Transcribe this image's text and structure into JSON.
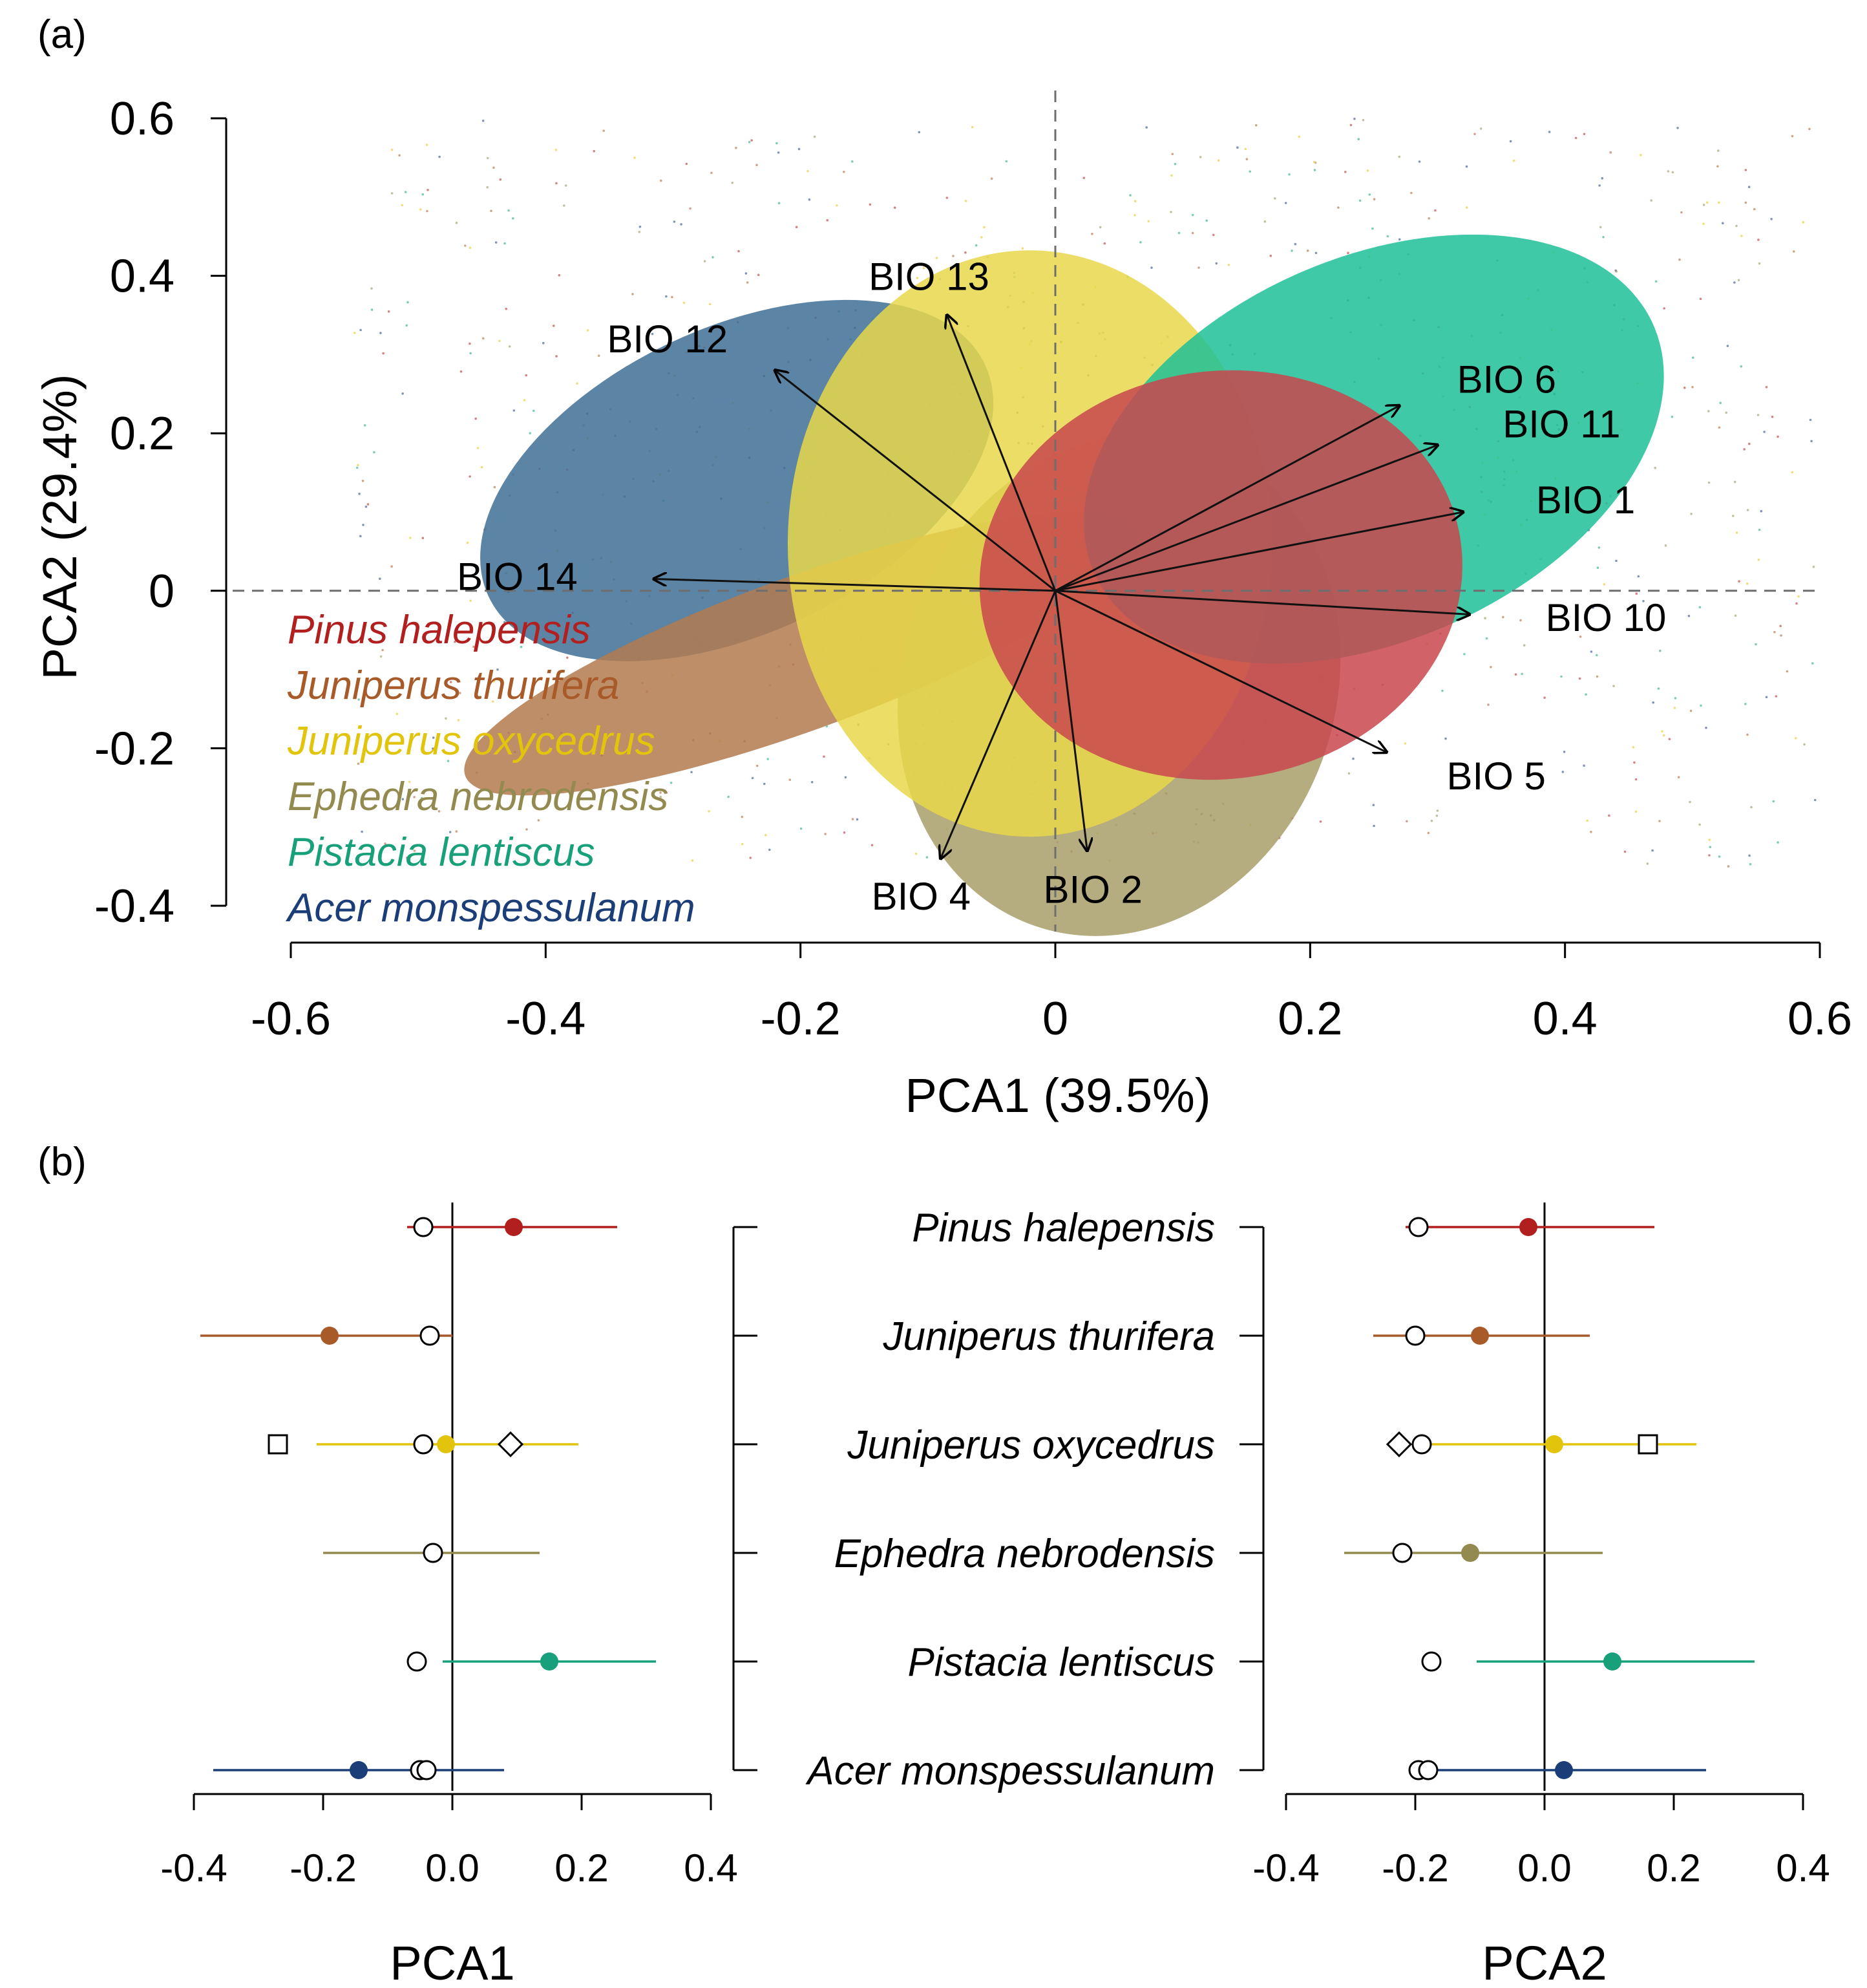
{
  "panel_labels": {
    "a": "(a)",
    "b": "(b)"
  },
  "species": [
    {
      "name": "Pinus halepensis",
      "color": "#b21f1f",
      "fill": "#c9474d"
    },
    {
      "name": "Juniperus thurifera",
      "color": "#a85a28",
      "fill": "#b37a4f"
    },
    {
      "name": "Juniperus oxycedrus",
      "color": "#e2c40c",
      "fill": "#e8d74a"
    },
    {
      "name": "Ephedra nebrodensis",
      "color": "#938a4f",
      "fill": "#a89e6a"
    },
    {
      "name": "Pistacia lentiscus",
      "color": "#17a07a",
      "fill": "#1fbf97"
    },
    {
      "name": "Acer monspessulanum",
      "color": "#1b3d78",
      "fill": "#3e6e95"
    }
  ],
  "chart_data": [
    {
      "type": "scatter",
      "title": "(a)",
      "xlabel": "PCA1 (39.5%)",
      "ylabel": "PCA2 (29.4%)",
      "xlim": [
        -0.6,
        0.6
      ],
      "ylim": [
        -0.4,
        0.6
      ],
      "xticks": [
        "-0.6",
        "-0.4",
        "-0.2",
        "0",
        "0.2",
        "0.4",
        "0.6"
      ],
      "yticks": [
        "0.6",
        "0.4",
        "0.2",
        "0",
        "-0.2",
        "-0.4"
      ],
      "xtick_values": [
        -0.6,
        -0.4,
        -0.2,
        0,
        0.2,
        0.4,
        0.6
      ],
      "ytick_values": [
        0.6,
        0.4,
        0.2,
        0,
        -0.2,
        -0.4
      ],
      "ellipses": [
        {
          "species": "Acer monspessulanum",
          "cx": -0.25,
          "cy": 0.14,
          "rx": 0.215,
          "ry": 0.12,
          "angle": -25
        },
        {
          "species": "Juniperus thurifera",
          "cx": -0.2,
          "cy": -0.08,
          "rx": 0.28,
          "ry": 0.06,
          "angle": -20
        },
        {
          "species": "Ephedra nebrodensis",
          "cx": 0.05,
          "cy": -0.12,
          "rx": 0.17,
          "ry": 0.2,
          "angle": 20
        },
        {
          "species": "Juniperus oxycedrus",
          "cx": -0.02,
          "cy": 0.06,
          "rx": 0.19,
          "ry": 0.23,
          "angle": 0
        },
        {
          "species": "Pistacia lentiscus",
          "cx": 0.25,
          "cy": 0.18,
          "rx": 0.24,
          "ry": 0.15,
          "angle": -24
        },
        {
          "species": "Pinus halepensis",
          "cx": 0.13,
          "cy": 0.02,
          "rx": 0.19,
          "ry": 0.16,
          "angle": -8
        }
      ],
      "vectors": [
        {
          "label": "BIO 13",
          "x": -0.085,
          "y": 0.35
        },
        {
          "label": "BIO 12",
          "x": -0.22,
          "y": 0.28
        },
        {
          "label": "BIO 14",
          "x": -0.315,
          "y": 0.015
        },
        {
          "label": "BIO 6",
          "x": 0.27,
          "y": 0.235
        },
        {
          "label": "BIO 11",
          "x": 0.3,
          "y": 0.185
        },
        {
          "label": "BIO 1",
          "x": 0.32,
          "y": 0.1
        },
        {
          "label": "BIO 10",
          "x": 0.325,
          "y": -0.03
        },
        {
          "label": "BIO 5",
          "x": 0.26,
          "y": -0.205
        },
        {
          "label": "BIO 2",
          "x": 0.025,
          "y": -0.33
        },
        {
          "label": "BIO 4",
          "x": -0.09,
          "y": -0.34
        }
      ]
    },
    {
      "type": "scatter",
      "title": "(b) PCA1",
      "xlabel": "PCA1",
      "xlim": [
        -0.4,
        0.4
      ],
      "xticks": [
        "-0.4",
        "-0.2",
        "0.0",
        "0.2",
        "0.4"
      ],
      "xtick_values": [
        -0.4,
        -0.2,
        0.0,
        0.2,
        0.4
      ],
      "rows": [
        {
          "species": "Pinus halepensis",
          "mean": 0.095,
          "low": -0.07,
          "high": 0.255,
          "markers": [
            {
              "shape": "circle",
              "x": -0.045
            }
          ]
        },
        {
          "species": "Juniperus thurifera",
          "mean": -0.19,
          "low": -0.39,
          "high": 0.0,
          "markers": [
            {
              "shape": "circle",
              "x": -0.035
            }
          ]
        },
        {
          "species": "Juniperus oxycedrus",
          "mean": -0.01,
          "low": -0.21,
          "high": 0.195,
          "markers": [
            {
              "shape": "circle",
              "x": -0.045
            },
            {
              "shape": "diamond",
              "x": 0.09
            },
            {
              "shape": "square",
              "x": -0.27
            }
          ]
        },
        {
          "species": "Ephedra nebrodensis",
          "mean": null,
          "low": -0.2,
          "high": 0.135,
          "markers": [
            {
              "shape": "circle",
              "x": -0.03
            }
          ]
        },
        {
          "species": "Pistacia lentiscus",
          "mean": 0.15,
          "low": -0.015,
          "high": 0.315,
          "markers": [
            {
              "shape": "circle",
              "x": -0.055
            }
          ]
        },
        {
          "species": "Acer monspessulanum",
          "mean": -0.145,
          "low": -0.37,
          "high": 0.08,
          "markers": [
            {
              "shape": "circle",
              "x": -0.05
            },
            {
              "shape": "circle",
              "x": -0.04
            }
          ]
        }
      ]
    },
    {
      "type": "scatter",
      "title": "(b) PCA2",
      "xlabel": "PCA2",
      "xlim": [
        -0.4,
        0.4
      ],
      "xticks": [
        "-0.4",
        "-0.2",
        "0.0",
        "0.2",
        "0.4"
      ],
      "xtick_values": [
        -0.4,
        -0.2,
        0.0,
        0.2,
        0.4
      ],
      "rows": [
        {
          "species": "Pinus halepensis",
          "mean": -0.025,
          "low": -0.215,
          "high": 0.17,
          "markers": [
            {
              "shape": "circle",
              "x": -0.195
            }
          ]
        },
        {
          "species": "Juniperus thurifera",
          "mean": -0.1,
          "low": -0.265,
          "high": 0.07,
          "markers": [
            {
              "shape": "circle",
              "x": -0.2
            }
          ]
        },
        {
          "species": "Juniperus oxycedrus",
          "mean": 0.015,
          "low": -0.19,
          "high": 0.235,
          "markers": [
            {
              "shape": "circle",
              "x": -0.19
            },
            {
              "shape": "diamond",
              "x": -0.225
            },
            {
              "shape": "square",
              "x": 0.16
            }
          ]
        },
        {
          "species": "Ephedra nebrodensis",
          "mean": -0.115,
          "low": -0.31,
          "high": 0.09,
          "markers": [
            {
              "shape": "circle",
              "x": -0.22
            }
          ]
        },
        {
          "species": "Pistacia lentiscus",
          "mean": 0.105,
          "low": -0.105,
          "high": 0.325,
          "markers": [
            {
              "shape": "circle",
              "x": -0.175
            }
          ]
        },
        {
          "species": "Acer monspessulanum",
          "mean": 0.03,
          "low": -0.17,
          "high": 0.25,
          "markers": [
            {
              "shape": "circle",
              "x": -0.195
            },
            {
              "shape": "circle",
              "x": -0.18
            }
          ]
        }
      ]
    }
  ]
}
